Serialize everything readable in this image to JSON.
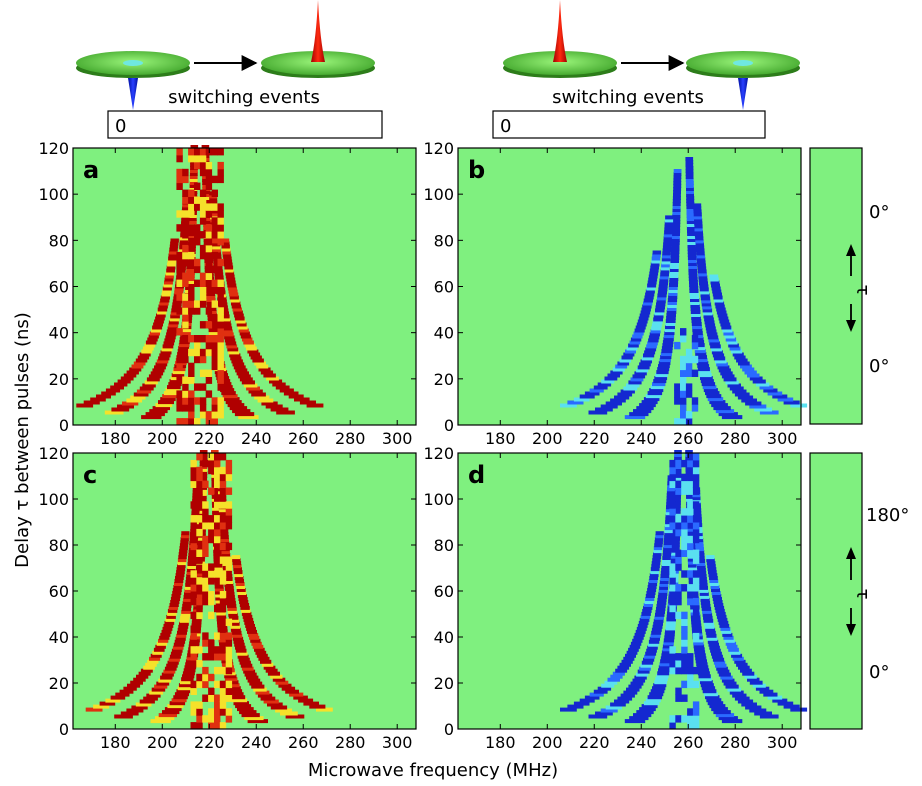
{
  "figure": {
    "xlabel": "Microwave frequency (MHz)",
    "ylabel": "Delay τ between pulses (ns)",
    "colors": {
      "background": "#7ff07f",
      "green_dark": "#4caf2a",
      "red": "#e03010",
      "yellow": "#f5e12a",
      "dark_red": "#b00000",
      "blue": "#1428d0",
      "cyan": "#5ae0f0"
    }
  },
  "headers": [
    {
      "label": "switching events",
      "counter": "0",
      "from_spike": "down",
      "to_spike": "up"
    },
    {
      "label": "switching events",
      "counter": "0",
      "from_spike": "up",
      "to_spike": "down"
    }
  ],
  "pulse_panels": [
    {
      "top_angle": "0°",
      "bottom_angle": "0°",
      "tau_label": "τ"
    },
    {
      "top_angle": "180°",
      "bottom_angle": "0°",
      "tau_label": "τ"
    }
  ],
  "chart_data": [
    {
      "type": "heatmap",
      "panel_label": "a",
      "sign": "positive",
      "xlim": [
        162,
        308
      ],
      "ylim": [
        0,
        120
      ],
      "xticks": [
        180,
        200,
        220,
        240,
        260,
        280,
        300
      ],
      "yticks": [
        0,
        20,
        40,
        60,
        80,
        100,
        120
      ],
      "center_x": 216,
      "fringes": [
        {
          "side": "left",
          "A": 310,
          "tau0": 0,
          "ymin": 3,
          "ymax": 120,
          "intensity": "high"
        },
        {
          "side": "left",
          "A": 620,
          "tau0": 0,
          "ymin": 5,
          "ymax": 100,
          "intensity": "high"
        },
        {
          "side": "left",
          "A": 980,
          "tau0": 0,
          "ymin": 8,
          "ymax": 80,
          "intensity": "high"
        },
        {
          "side": "right",
          "A": 310,
          "tau0": 0,
          "ymin": 3,
          "ymax": 120,
          "intensity": "high"
        },
        {
          "side": "right",
          "A": 620,
          "tau0": 0,
          "ymin": 5,
          "ymax": 100,
          "intensity": "high"
        },
        {
          "side": "right",
          "A": 980,
          "tau0": 0,
          "ymin": 8,
          "ymax": 80,
          "intensity": "high"
        }
      ],
      "central_band": {
        "x_from": 206,
        "x_to": 224,
        "y_from": 0,
        "y_to": 120
      }
    },
    {
      "type": "heatmap",
      "panel_label": "b",
      "sign": "negative",
      "xlim": [
        162,
        308
      ],
      "ylim": [
        0,
        120
      ],
      "xticks": [
        180,
        200,
        220,
        240,
        260,
        280,
        300
      ],
      "yticks": [
        0,
        20,
        40,
        60,
        80,
        100,
        120
      ],
      "center_x": 258,
      "fringes": [
        {
          "side": "left",
          "A": 310,
          "tau0": 0,
          "ymin": 3,
          "ymax": 110,
          "intensity": "high"
        },
        {
          "side": "left",
          "A": 620,
          "tau0": 0,
          "ymin": 5,
          "ymax": 90,
          "intensity": "high"
        },
        {
          "side": "left",
          "A": 980,
          "tau0": 0,
          "ymin": 8,
          "ymax": 75,
          "intensity": "high"
        },
        {
          "side": "right",
          "A": 310,
          "tau0": 0,
          "ymin": 3,
          "ymax": 115,
          "intensity": "high"
        },
        {
          "side": "right",
          "A": 620,
          "tau0": 0,
          "ymin": 5,
          "ymax": 95,
          "intensity": "high"
        },
        {
          "side": "right",
          "A": 980,
          "tau0": 0,
          "ymin": 8,
          "ymax": 65,
          "intensity": "high"
        }
      ],
      "central_band": {
        "x_from": 254,
        "x_to": 262,
        "y_from": 0,
        "y_to": 40
      }
    },
    {
      "type": "heatmap",
      "panel_label": "c",
      "sign": "positive",
      "xlim": [
        162,
        308
      ],
      "ylim": [
        0,
        120
      ],
      "xticks": [
        180,
        200,
        220,
        240,
        260,
        280,
        300
      ],
      "yticks": [
        0,
        20,
        40,
        60,
        80,
        100,
        120
      ],
      "center_x": 220,
      "fringes": [
        {
          "side": "left",
          "A": 310,
          "tau0": 0,
          "ymin": 3,
          "ymax": 120,
          "intensity": "high"
        },
        {
          "side": "left",
          "A": 620,
          "tau0": 0,
          "ymin": 5,
          "ymax": 110,
          "intensity": "high"
        },
        {
          "side": "left",
          "A": 980,
          "tau0": 0,
          "ymin": 8,
          "ymax": 85,
          "intensity": "high"
        },
        {
          "side": "right",
          "A": 310,
          "tau0": 0,
          "ymin": 3,
          "ymax": 120,
          "intensity": "high"
        },
        {
          "side": "right",
          "A": 620,
          "tau0": 0,
          "ymin": 5,
          "ymax": 110,
          "intensity": "high"
        },
        {
          "side": "right",
          "A": 980,
          "tau0": 0,
          "ymin": 8,
          "ymax": 75,
          "intensity": "high"
        }
      ],
      "central_band": {
        "x_from": 212,
        "x_to": 228,
        "y_from": 0,
        "y_to": 120
      }
    },
    {
      "type": "heatmap",
      "panel_label": "d",
      "sign": "negative",
      "xlim": [
        162,
        308
      ],
      "ylim": [
        0,
        120
      ],
      "xticks": [
        180,
        200,
        220,
        240,
        260,
        280,
        300
      ],
      "yticks": [
        0,
        20,
        40,
        60,
        80,
        100,
        120
      ],
      "center_x": 258,
      "fringes": [
        {
          "side": "left",
          "A": 310,
          "tau0": 0,
          "ymin": 3,
          "ymax": 120,
          "intensity": "high"
        },
        {
          "side": "left",
          "A": 620,
          "tau0": 0,
          "ymin": 5,
          "ymax": 110,
          "intensity": "high"
        },
        {
          "side": "left",
          "A": 980,
          "tau0": 0,
          "ymin": 8,
          "ymax": 85,
          "intensity": "high"
        },
        {
          "side": "right",
          "A": 310,
          "tau0": 0,
          "ymin": 3,
          "ymax": 120,
          "intensity": "high"
        },
        {
          "side": "right",
          "A": 620,
          "tau0": 0,
          "ymin": 5,
          "ymax": 105,
          "intensity": "high"
        },
        {
          "side": "right",
          "A": 980,
          "tau0": 0,
          "ymin": 8,
          "ymax": 75,
          "intensity": "high"
        }
      ],
      "central_band": {
        "x_from": 252,
        "x_to": 264,
        "y_from": 0,
        "y_to": 120
      }
    }
  ]
}
